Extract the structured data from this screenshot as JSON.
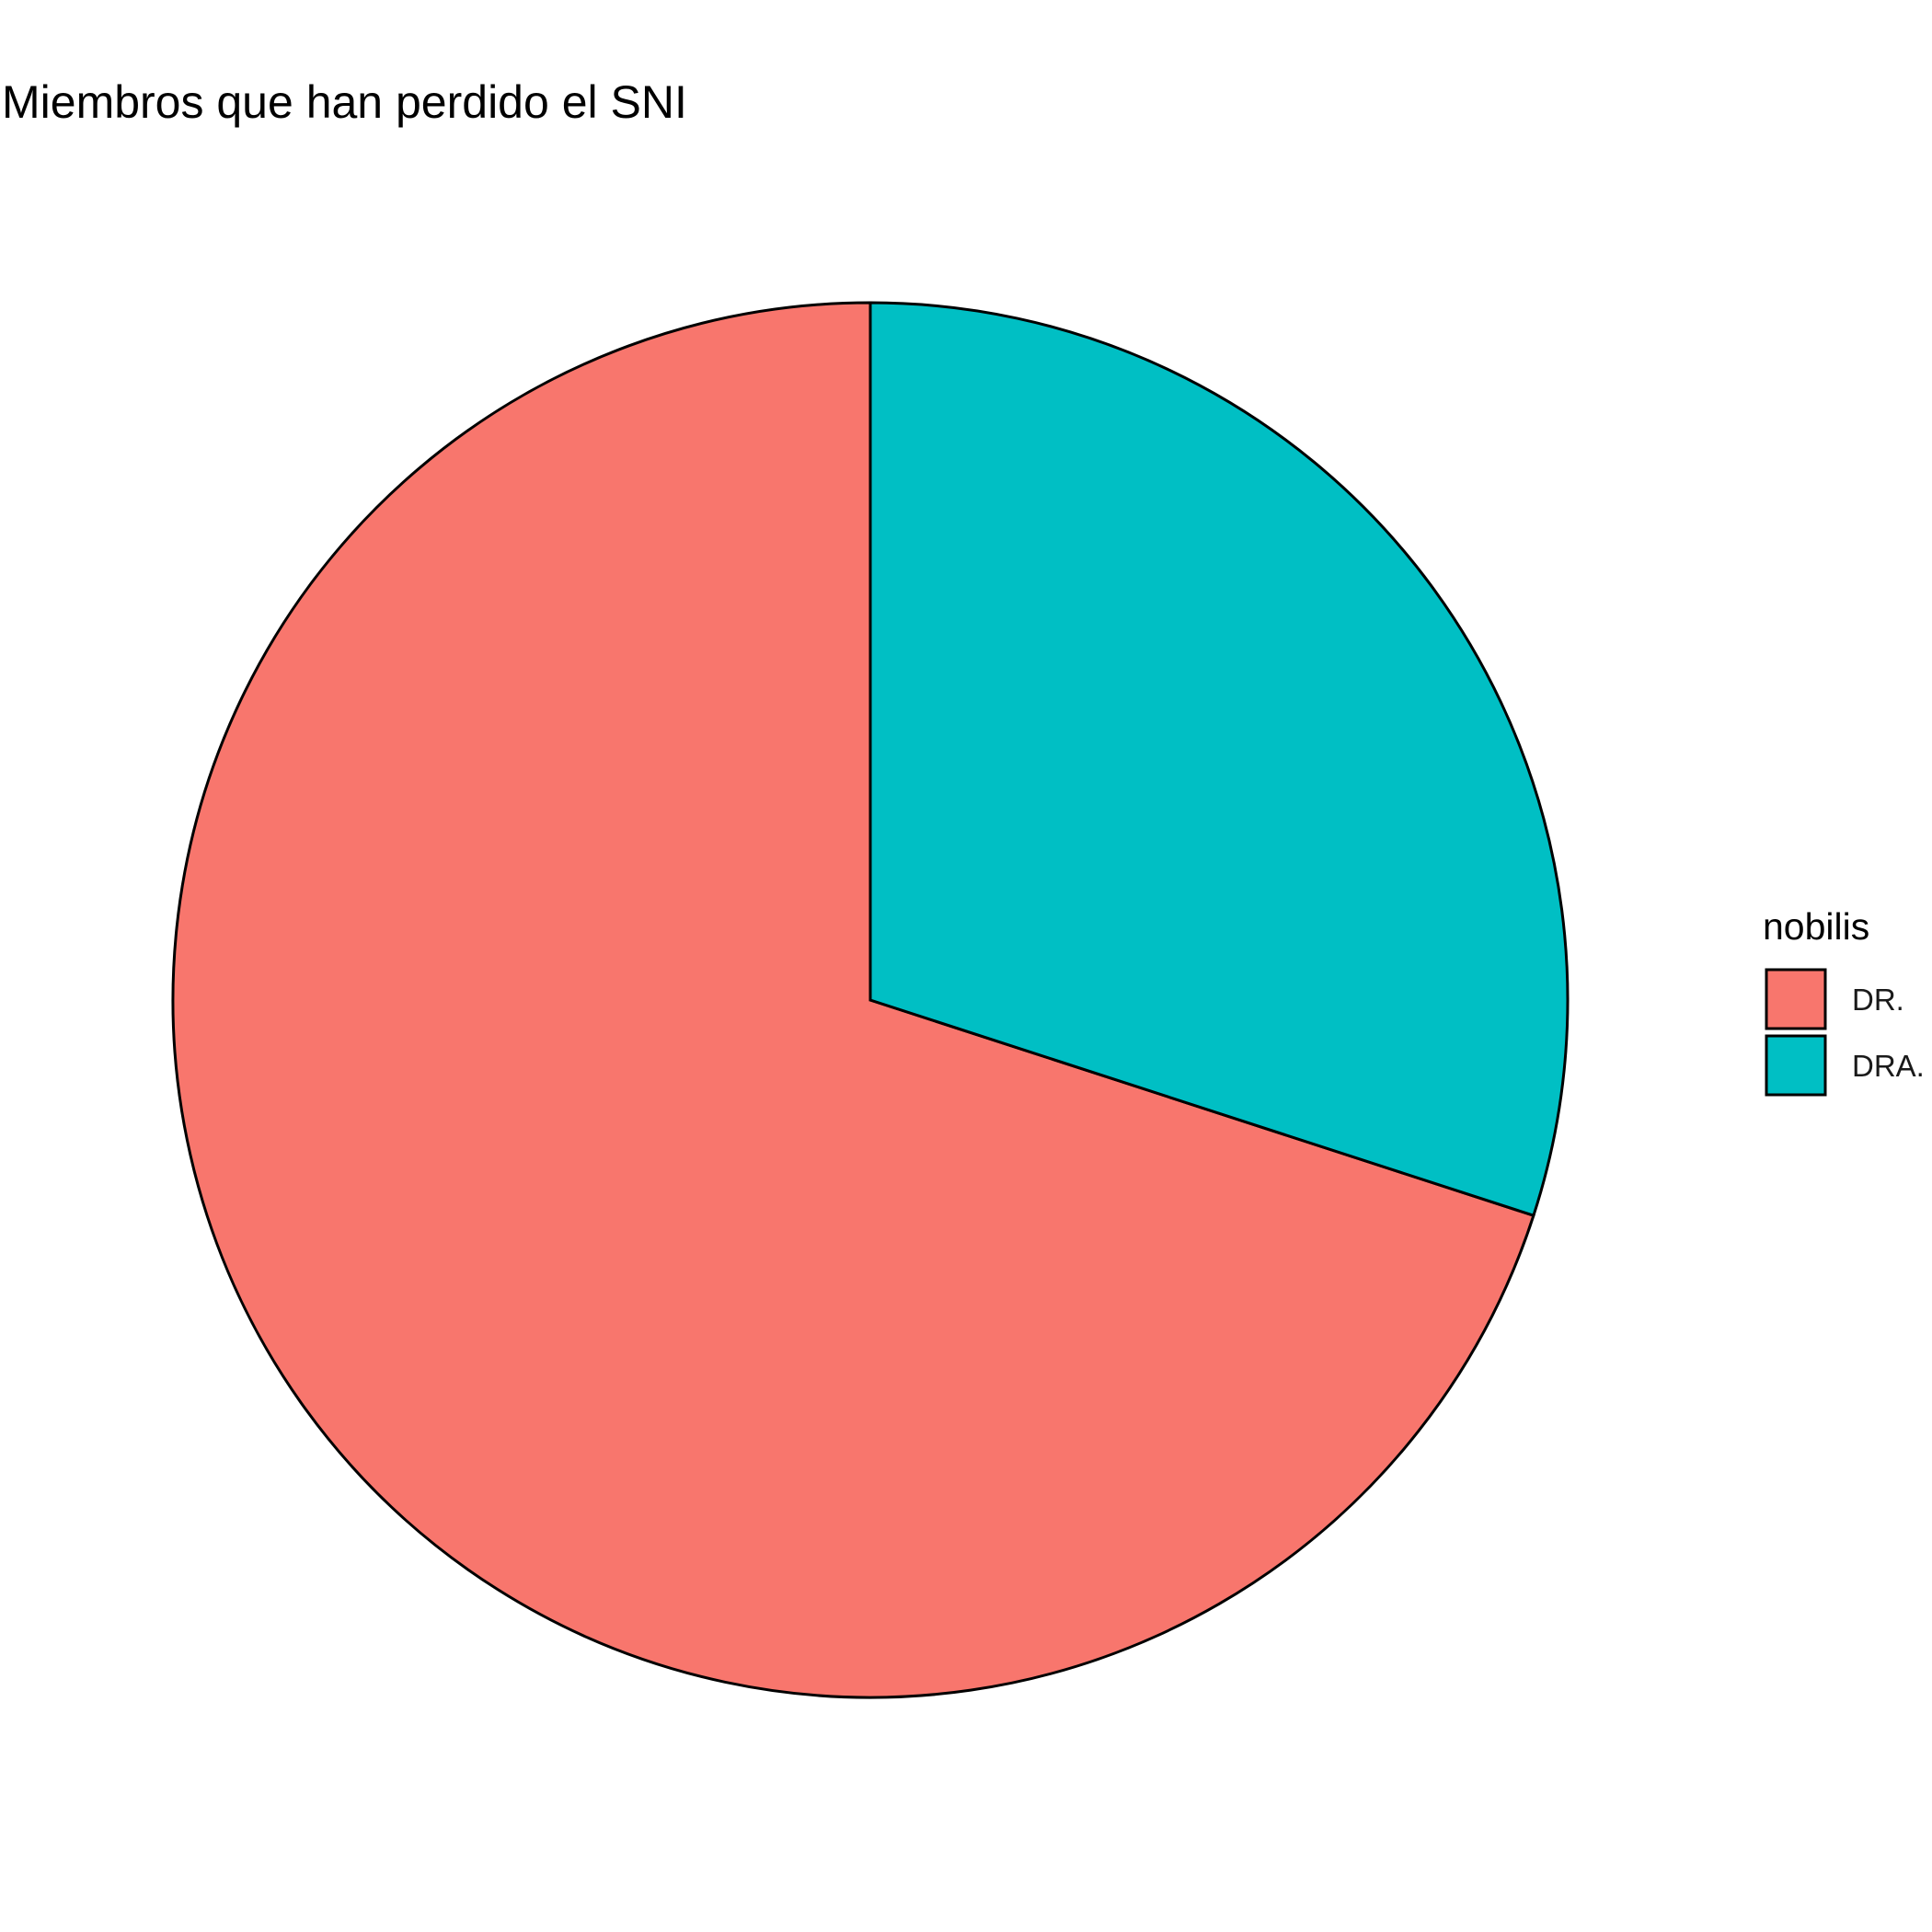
{
  "chart_data": {
    "type": "pie",
    "title": "Miembros que han perdido el SNI",
    "legend_title": "nobilis",
    "legend_position": "right",
    "direction": "counterclockwise",
    "start": "top",
    "categories": [
      "DR.",
      "DRA."
    ],
    "values": [
      0.7,
      0.3
    ],
    "colors": [
      "#F8766D",
      "#00BFC4"
    ]
  }
}
